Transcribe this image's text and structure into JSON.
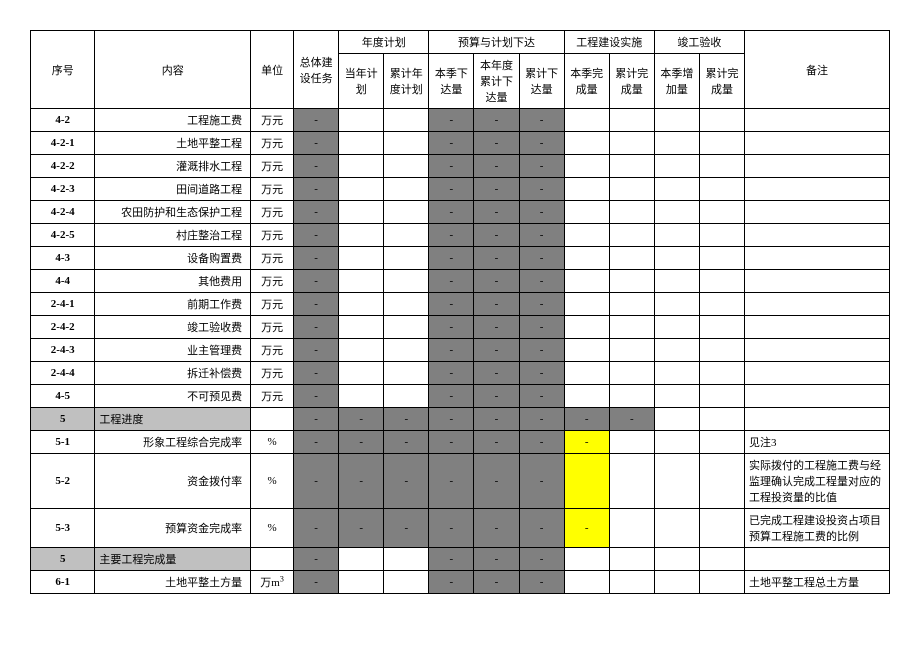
{
  "colors": {
    "grayDark": "#808080",
    "grayLight": "#c0c0c0",
    "yellow": "#ffff00",
    "border": "#000000",
    "background": "#ffffff"
  },
  "header": {
    "seq": "序号",
    "content": "内容",
    "unit": "单位",
    "total": "总体建设任务",
    "yearPlan": "年度计划",
    "budget": "预算与计划下达",
    "construction": "工程建设实施",
    "acceptance": "竣工验收",
    "remark": "备注",
    "curYearPlan": "当年计划",
    "cumYearPlan": "累计年度计划",
    "curQtrIssue": "本季下达量",
    "yearCumIssue": "本年度累计下达量",
    "cumIssue": "累计下达量",
    "curQtrComplete": "本季完成量",
    "cumComplete": "累计完成量",
    "curQtrAdd": "本季增加量",
    "cumComplete2": "累计完成量"
  },
  "rows": [
    {
      "seq": "4-2",
      "content": "工程施工费",
      "contentAlign": "right",
      "unit": "万元",
      "total": "-",
      "c1": "",
      "c2": "",
      "b1": "-",
      "b2": "-",
      "b3": "-",
      "g1": "",
      "g2": "",
      "a1": "",
      "a2": "",
      "remark": "",
      "totalCls": "gray-dark",
      "b1Cls": "gray-dark",
      "b2Cls": "gray-dark",
      "b3Cls": "gray-dark"
    },
    {
      "seq": "4-2-1",
      "content": "土地平整工程",
      "contentAlign": "right",
      "unit": "万元",
      "total": "-",
      "c1": "",
      "c2": "",
      "b1": "-",
      "b2": "-",
      "b3": "-",
      "g1": "",
      "g2": "",
      "a1": "",
      "a2": "",
      "remark": "",
      "totalCls": "gray-dark",
      "b1Cls": "gray-dark",
      "b2Cls": "gray-dark",
      "b3Cls": "gray-dark"
    },
    {
      "seq": "4-2-2",
      "content": "灌溉排水工程",
      "contentAlign": "right",
      "unit": "万元",
      "total": "-",
      "c1": "",
      "c2": "",
      "b1": "-",
      "b2": "-",
      "b3": "-",
      "g1": "",
      "g2": "",
      "a1": "",
      "a2": "",
      "remark": "",
      "totalCls": "gray-dark",
      "b1Cls": "gray-dark",
      "b2Cls": "gray-dark",
      "b3Cls": "gray-dark"
    },
    {
      "seq": "4-2-3",
      "content": "田间道路工程",
      "contentAlign": "right",
      "unit": "万元",
      "total": "-",
      "c1": "",
      "c2": "",
      "b1": "-",
      "b2": "-",
      "b3": "-",
      "g1": "",
      "g2": "",
      "a1": "",
      "a2": "",
      "remark": "",
      "totalCls": "gray-dark",
      "b1Cls": "gray-dark",
      "b2Cls": "gray-dark",
      "b3Cls": "gray-dark"
    },
    {
      "seq": "4-2-4",
      "content": "农田防护和生态保护工程",
      "contentAlign": "right",
      "unit": "万元",
      "total": "-",
      "c1": "",
      "c2": "",
      "b1": "-",
      "b2": "-",
      "b3": "-",
      "g1": "",
      "g2": "",
      "a1": "",
      "a2": "",
      "remark": "",
      "totalCls": "gray-dark",
      "b1Cls": "gray-dark",
      "b2Cls": "gray-dark",
      "b3Cls": "gray-dark"
    },
    {
      "seq": "4-2-5",
      "content": "村庄整治工程",
      "contentAlign": "right",
      "unit": "万元",
      "total": "-",
      "c1": "",
      "c2": "",
      "b1": "-",
      "b2": "-",
      "b3": "-",
      "g1": "",
      "g2": "",
      "a1": "",
      "a2": "",
      "remark": "",
      "totalCls": "gray-dark",
      "b1Cls": "gray-dark",
      "b2Cls": "gray-dark",
      "b3Cls": "gray-dark"
    },
    {
      "seq": "4-3",
      "content": "设备购置费",
      "contentAlign": "right",
      "unit": "万元",
      "total": "-",
      "c1": "",
      "c2": "",
      "b1": "-",
      "b2": "-",
      "b3": "-",
      "g1": "",
      "g2": "",
      "a1": "",
      "a2": "",
      "remark": "",
      "totalCls": "gray-dark",
      "b1Cls": "gray-dark",
      "b2Cls": "gray-dark",
      "b3Cls": "gray-dark"
    },
    {
      "seq": "4-4",
      "content": "其他费用",
      "contentAlign": "right",
      "unit": "万元",
      "total": "-",
      "c1": "",
      "c2": "",
      "b1": "-",
      "b2": "-",
      "b3": "-",
      "g1": "",
      "g2": "",
      "a1": "",
      "a2": "",
      "remark": "",
      "totalCls": "gray-dark",
      "b1Cls": "gray-dark",
      "b2Cls": "gray-dark",
      "b3Cls": "gray-dark"
    },
    {
      "seq": "2-4-1",
      "content": "前期工作费",
      "contentAlign": "right",
      "unit": "万元",
      "total": "-",
      "c1": "",
      "c2": "",
      "b1": "-",
      "b2": "-",
      "b3": "-",
      "g1": "",
      "g2": "",
      "a1": "",
      "a2": "",
      "remark": "",
      "totalCls": "gray-dark",
      "b1Cls": "gray-dark",
      "b2Cls": "gray-dark",
      "b3Cls": "gray-dark"
    },
    {
      "seq": "2-4-2",
      "content": "竣工验收费",
      "contentAlign": "right",
      "unit": "万元",
      "total": "-",
      "c1": "",
      "c2": "",
      "b1": "-",
      "b2": "-",
      "b3": "-",
      "g1": "",
      "g2": "",
      "a1": "",
      "a2": "",
      "remark": "",
      "totalCls": "gray-dark",
      "b1Cls": "gray-dark",
      "b2Cls": "gray-dark",
      "b3Cls": "gray-dark"
    },
    {
      "seq": "2-4-3",
      "content": "业主管理费",
      "contentAlign": "right",
      "unit": "万元",
      "total": "-",
      "c1": "",
      "c2": "",
      "b1": "-",
      "b2": "-",
      "b3": "-",
      "g1": "",
      "g2": "",
      "a1": "",
      "a2": "",
      "remark": "",
      "totalCls": "gray-dark",
      "b1Cls": "gray-dark",
      "b2Cls": "gray-dark",
      "b3Cls": "gray-dark"
    },
    {
      "seq": "2-4-4",
      "content": "拆迁补偿费",
      "contentAlign": "right",
      "unit": "万元",
      "total": "-",
      "c1": "",
      "c2": "",
      "b1": "-",
      "b2": "-",
      "b3": "-",
      "g1": "",
      "g2": "",
      "a1": "",
      "a2": "",
      "remark": "",
      "totalCls": "gray-dark",
      "b1Cls": "gray-dark",
      "b2Cls": "gray-dark",
      "b3Cls": "gray-dark"
    },
    {
      "seq": "4-5",
      "content": "不可预见费",
      "contentAlign": "right",
      "unit": "万元",
      "total": "-",
      "c1": "",
      "c2": "",
      "b1": "-",
      "b2": "-",
      "b3": "-",
      "g1": "",
      "g2": "",
      "a1": "",
      "a2": "",
      "remark": "",
      "totalCls": "gray-dark",
      "b1Cls": "gray-dark",
      "b2Cls": "gray-dark",
      "b3Cls": "gray-dark"
    },
    {
      "seq": "5",
      "content": "工程进度",
      "contentAlign": "left",
      "unit": "",
      "total": "-",
      "c1": "-",
      "c2": "-",
      "b1": "-",
      "b2": "-",
      "b3": "-",
      "g1": "-",
      "g2": "-",
      "a1": "",
      "a2": "",
      "remark": "",
      "seqCls": "gray-light",
      "contentCls": "gray-light",
      "totalCls": "gray-dark",
      "c1Cls": "gray-dark",
      "c2Cls": "gray-dark",
      "b1Cls": "gray-dark",
      "b2Cls": "gray-dark",
      "b3Cls": "gray-dark",
      "g1Cls": "gray-dark",
      "g2Cls": "gray-dark"
    },
    {
      "seq": "5-1",
      "content": "形象工程综合完成率",
      "contentAlign": "right",
      "unit": "%",
      "total": "-",
      "c1": "-",
      "c2": "-",
      "b1": "-",
      "b2": "-",
      "b3": "-",
      "g1": "-",
      "g2": "",
      "a1": "",
      "a2": "",
      "remark": "见注3",
      "totalCls": "gray-dark",
      "c1Cls": "gray-dark",
      "c2Cls": "gray-dark",
      "b1Cls": "gray-dark",
      "b2Cls": "gray-dark",
      "b3Cls": "gray-dark",
      "g1Cls": "yellow"
    },
    {
      "seq": "5-2",
      "content": "资金拨付率",
      "contentAlign": "right",
      "unit": "%",
      "total": "-",
      "c1": "-",
      "c2": "-",
      "b1": "-",
      "b2": "-",
      "b3": "-",
      "g1": "",
      "g2": "",
      "a1": "",
      "a2": "",
      "remark": "实际拨付的工程施工费与经监理确认完成工程量对应的工程投资量的比值",
      "totalCls": "gray-dark",
      "c1Cls": "gray-dark",
      "c2Cls": "gray-dark",
      "b1Cls": "gray-dark",
      "b2Cls": "gray-dark",
      "b3Cls": "gray-dark",
      "g1Cls": "yellow",
      "tall": true
    },
    {
      "seq": "5-3",
      "content": "预算资金完成率",
      "contentAlign": "right",
      "unit": "%",
      "total": "-",
      "c1": "-",
      "c2": "-",
      "b1": "-",
      "b2": "-",
      "b3": "-",
      "g1": "-",
      "g2": "",
      "a1": "",
      "a2": "",
      "remark": "已完成工程建设投资占项目预算工程施工费的比例",
      "totalCls": "gray-dark",
      "c1Cls": "gray-dark",
      "c2Cls": "gray-dark",
      "b1Cls": "gray-dark",
      "b2Cls": "gray-dark",
      "b3Cls": "gray-dark",
      "g1Cls": "yellow"
    },
    {
      "seq": "5",
      "content": "主要工程完成量",
      "contentAlign": "left",
      "unit": "",
      "total": "-",
      "c1": "",
      "c2": "",
      "b1": "-",
      "b2": "-",
      "b3": "-",
      "g1": "",
      "g2": "",
      "a1": "",
      "a2": "",
      "remark": "",
      "seqCls": "gray-light",
      "contentCls": "gray-light",
      "totalCls": "gray-dark",
      "b1Cls": "gray-dark",
      "b2Cls": "gray-dark",
      "b3Cls": "gray-dark"
    },
    {
      "seq": "6-1",
      "content": "土地平整土方量",
      "contentAlign": "right",
      "unit": "万m",
      "unitSup": "3",
      "total": "-",
      "c1": "",
      "c2": "",
      "b1": "-",
      "b2": "-",
      "b3": "-",
      "g1": "",
      "g2": "",
      "a1": "",
      "a2": "",
      "remark": "土地平整工程总土方量",
      "totalCls": "gray-dark",
      "b1Cls": "gray-dark",
      "b2Cls": "gray-dark",
      "b3Cls": "gray-dark"
    }
  ]
}
